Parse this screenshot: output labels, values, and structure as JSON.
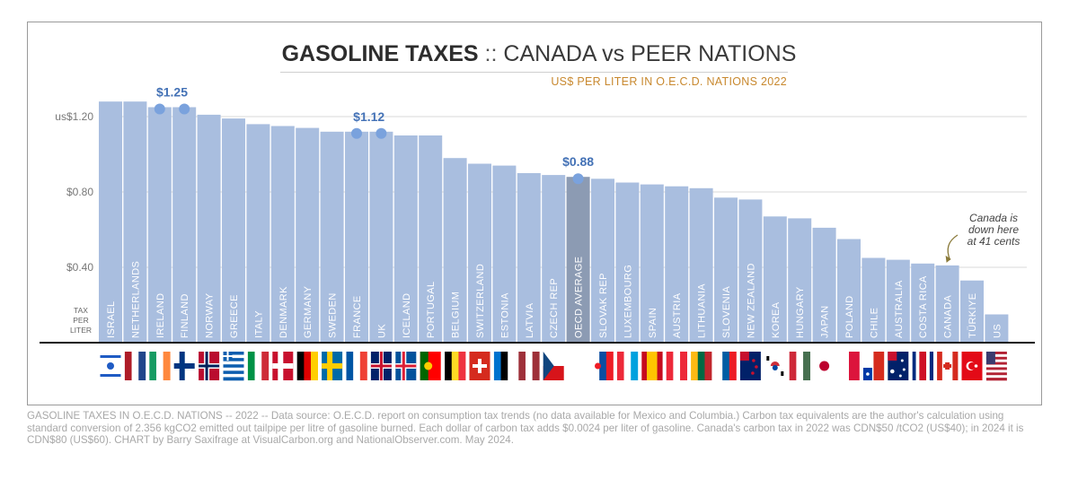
{
  "chart_data": {
    "type": "bar",
    "title": "GASOLINE TAXES",
    "title_separator": "::",
    "title_suffix": "CANADA vs PEER NATIONS",
    "subtitle": "US$ PER LITER  IN O.E.C.D. NATIONS 2022",
    "ylabel": "TAX PER LITER",
    "ylabel_lines": [
      "TAX",
      "PER",
      "LITER"
    ],
    "ylim": [
      0,
      1.3
    ],
    "yticks": [
      {
        "value": 0.4,
        "label": "$0.40"
      },
      {
        "value": 0.8,
        "label": "$0.80"
      },
      {
        "value": 1.2,
        "label": "us$1.20"
      }
    ],
    "grid": true,
    "categories": [
      "ISRAEL",
      "NETHERLANDS",
      "IRELAND",
      "FINLAND",
      "NORWAY",
      "GREECE",
      "ITALY",
      "DENMARK",
      "GERMANY",
      "SWEDEN",
      "FRANCE",
      "UK",
      "ICELAND",
      "PORTUGAL",
      "BELGIUM",
      "SWITZERLAND",
      "ESTONIA",
      "LATVIA",
      "CZECH REP",
      "OECD AVERAGE",
      "SLOVAK REP",
      "LUXEMBOURG",
      "SPAIN",
      "AUSTRIA",
      "LITHUANIA",
      "SLOVENIA",
      "NEW ZEALAND",
      "KOREA",
      "HUNGARY",
      "JAPAN",
      "POLAND",
      "CHILE",
      "AUSTRALIA",
      "COSTA RICA",
      "CANADA",
      "TÜRKIYE",
      "US"
    ],
    "values": [
      1.28,
      1.28,
      1.25,
      1.25,
      1.21,
      1.19,
      1.16,
      1.15,
      1.14,
      1.12,
      1.12,
      1.12,
      1.1,
      1.1,
      0.98,
      0.95,
      0.94,
      0.9,
      0.89,
      0.88,
      0.87,
      0.85,
      0.84,
      0.83,
      0.82,
      0.77,
      0.76,
      0.67,
      0.66,
      0.61,
      0.55,
      0.45,
      0.44,
      0.42,
      0.41,
      0.33,
      0.15
    ],
    "highlight": "OECD AVERAGE",
    "annotations": [
      {
        "label": "$1.25",
        "categories": [
          "IRELAND",
          "FINLAND"
        ],
        "value": 1.25
      },
      {
        "label": "$1.12",
        "categories": [
          "FRANCE",
          "UK"
        ],
        "value": 1.12
      },
      {
        "label": "$0.88",
        "categories": [
          "OECD AVERAGE"
        ],
        "value": 0.88
      }
    ],
    "callout": {
      "lines": [
        "Canada is",
        "down here",
        "at 41 cents"
      ],
      "target": "CANADA"
    },
    "colors": {
      "bar": "#a9bedf",
      "bar_highlight": "#8c9bb3",
      "dot": "#7aa2dd",
      "annotation_text": "#4472b6",
      "grid": "#d8d8d8"
    }
  },
  "flags": [
    "israel-flag",
    "netherlands-flag",
    "ireland-flag",
    "finland-flag",
    "norway-flag",
    "greece-flag",
    "italy-flag",
    "denmark-flag",
    "germany-flag",
    "sweden-flag",
    "france-flag",
    "uk-flag",
    "iceland-flag",
    "portugal-flag",
    "belgium-flag",
    "switzerland-flag",
    "estonia-flag",
    "latvia-flag",
    "czech-flag",
    "",
    "slovakia-flag",
    "luxembourg-flag",
    "spain-flag",
    "austria-flag",
    "lithuania-flag",
    "slovenia-flag",
    "new-zealand-flag",
    "korea-flag",
    "hungary-flag",
    "japan-flag",
    "poland-flag",
    "chile-flag",
    "australia-flag",
    "costa-rica-flag",
    "canada-flag",
    "turkey-flag",
    "us-flag"
  ],
  "footer": "GASOLINE TAXES IN O.E.C.D. NATIONS -- 2022 -- Data source: O.E.C.D. report on consumption tax trends (no data available for Mexico and Columbia.) Carbon tax equivalents are the author's calculation using standard conversion of 2.356 kgCO2 emitted out tailpipe per litre of gasoline burned. Each dollar of carbon tax adds $0.0024 per liter of gasoline. Canada's carbon tax in 2022 was CDN$50 /tCO2 (US$40); in 2024 it is CDN$80 (US$60). CHART by Barry Saxifrage at VisualCarbon.org and NationalObserver.com. May 2024."
}
